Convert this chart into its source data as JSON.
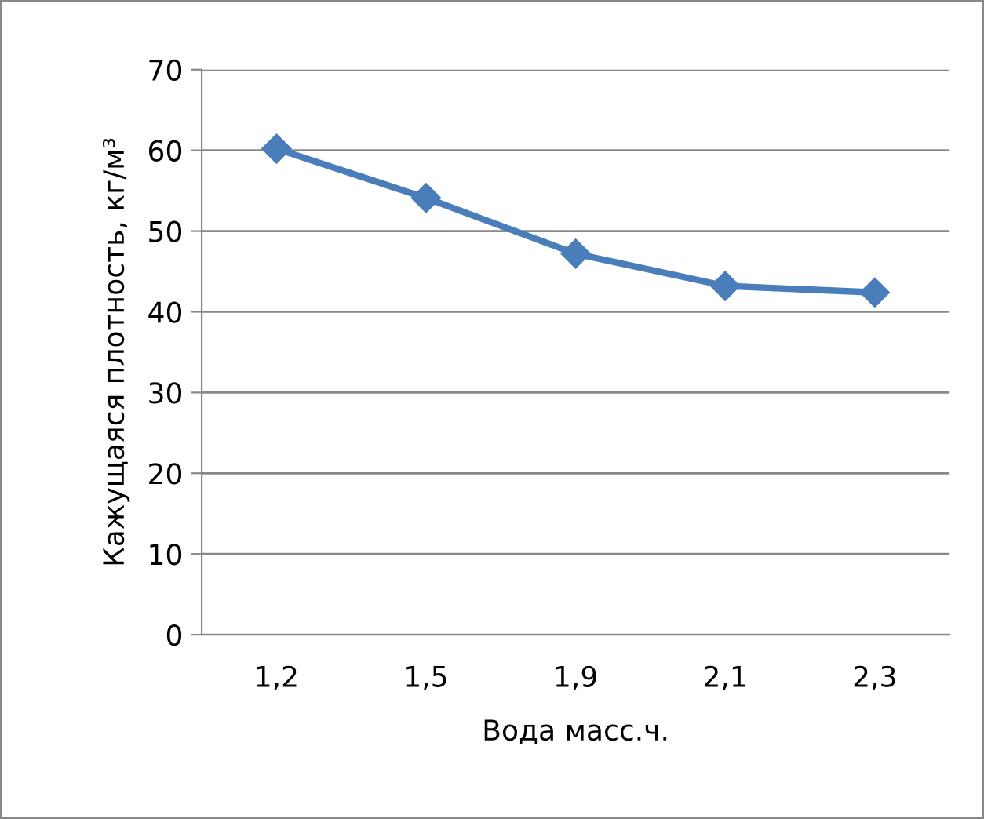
{
  "chart_data": {
    "type": "line",
    "xlabel": "Вода масс.ч.",
    "ylabel": "Кажущаяся плотность, кг/м³",
    "categories": [
      "1,2",
      "1,5",
      "1,9",
      "2,1",
      "2,3"
    ],
    "series": [
      {
        "color": "#4a7ebb",
        "values": [
          60.2,
          54.1,
          47.2,
          43.2,
          42.4
        ]
      }
    ],
    "ylim": [
      0,
      70
    ],
    "yticks": [
      0,
      10,
      20,
      30,
      40,
      50,
      60,
      70
    ],
    "grid": "y",
    "marker": "diamond",
    "line_style": "solid"
  }
}
